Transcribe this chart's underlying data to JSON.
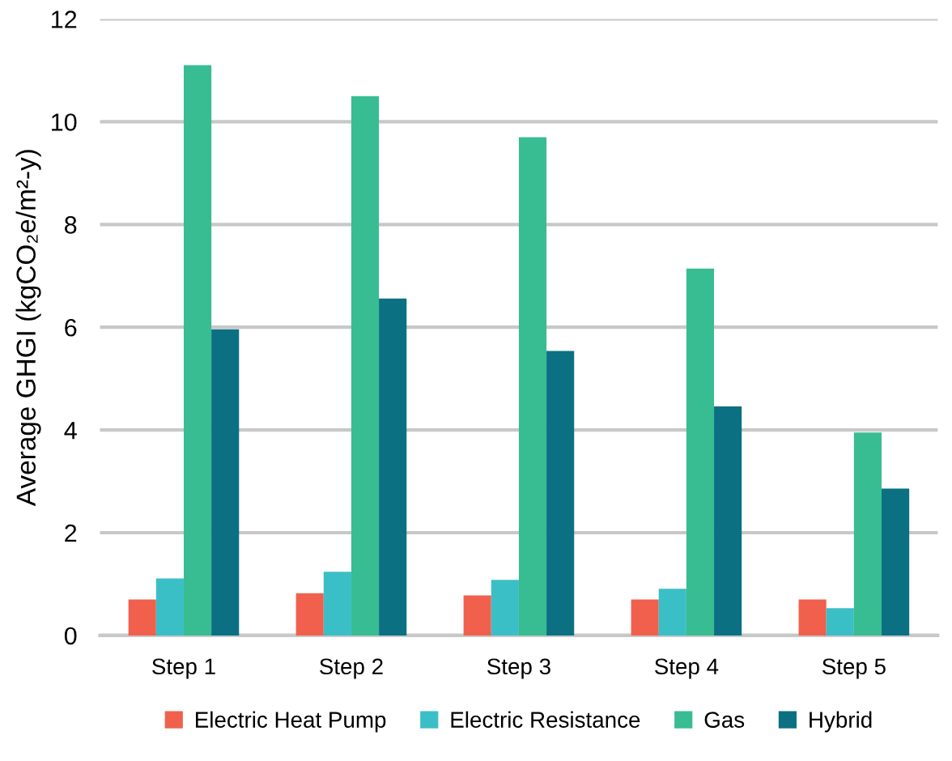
{
  "chart_data": {
    "type": "bar",
    "ylabel": "Average GHGI (kgCO₂e/m²-y)",
    "categories": [
      "Step 1",
      "Step 2",
      "Step 3",
      "Step 4",
      "Step 5"
    ],
    "series": [
      {
        "name": "Electric Heat Pump",
        "color": "#f0604d",
        "values": [
          0.7,
          0.82,
          0.78,
          0.7,
          0.7
        ]
      },
      {
        "name": "Electric Resistance",
        "color": "#3bbfc6",
        "values": [
          1.11,
          1.24,
          1.08,
          0.91,
          0.53
        ]
      },
      {
        "name": "Gas",
        "color": "#38bc92",
        "values": [
          11.1,
          10.5,
          9.7,
          7.14,
          3.95
        ]
      },
      {
        "name": "Hybrid",
        "color": "#0b7082",
        "values": [
          5.96,
          6.56,
          5.54,
          4.46,
          2.86
        ]
      }
    ],
    "ylim": [
      0,
      12
    ],
    "yticks": [
      0,
      2,
      4,
      6,
      8,
      10,
      12
    ],
    "grid": "y",
    "legend": "bottom"
  }
}
